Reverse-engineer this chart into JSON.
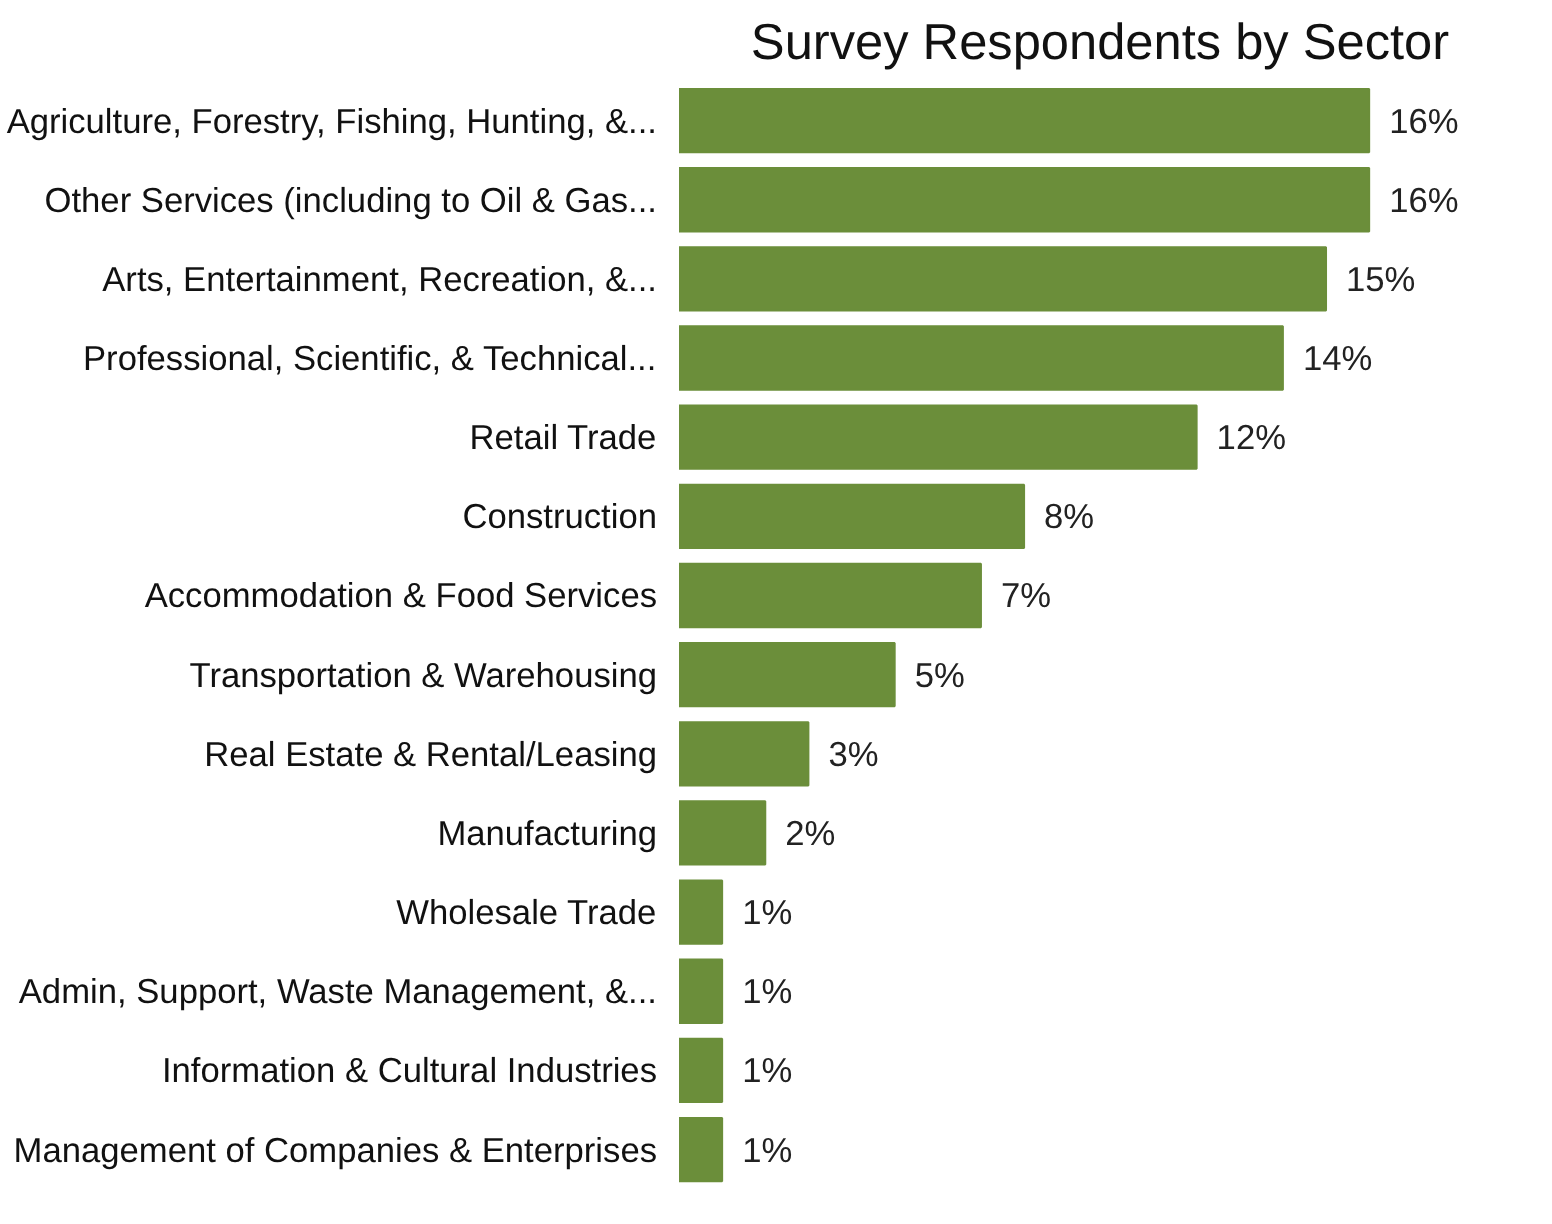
{
  "chart_data": {
    "type": "bar",
    "orientation": "horizontal",
    "title": "Survey Respondents by Sector",
    "categories": [
      "Agriculture, Forestry, Fishing, Hunting, &...",
      "Other Services (including to Oil & Gas...",
      "Arts, Entertainment, Recreation, &...",
      "Professional, Scientific, & Technical...",
      "Retail Trade",
      "Construction",
      "Accommodation & Food Services",
      "Transportation & Warehousing",
      "Real Estate & Rental/Leasing",
      "Manufacturing",
      "Wholesale Trade",
      "Admin, Support, Waste Management, &...",
      "Information & Cultural Industries",
      "Management of Companies & Enterprises"
    ],
    "values": [
      16,
      16,
      15,
      14,
      12,
      8,
      7,
      5,
      3,
      2,
      1,
      1,
      1,
      1
    ],
    "value_labels": [
      "16%",
      "16%",
      "15%",
      "14%",
      "12%",
      "8%",
      "7%",
      "5%",
      "3%",
      "2%",
      "1%",
      "1%",
      "1%",
      "1%"
    ],
    "color": "#6b8e3a",
    "grid": false
  }
}
